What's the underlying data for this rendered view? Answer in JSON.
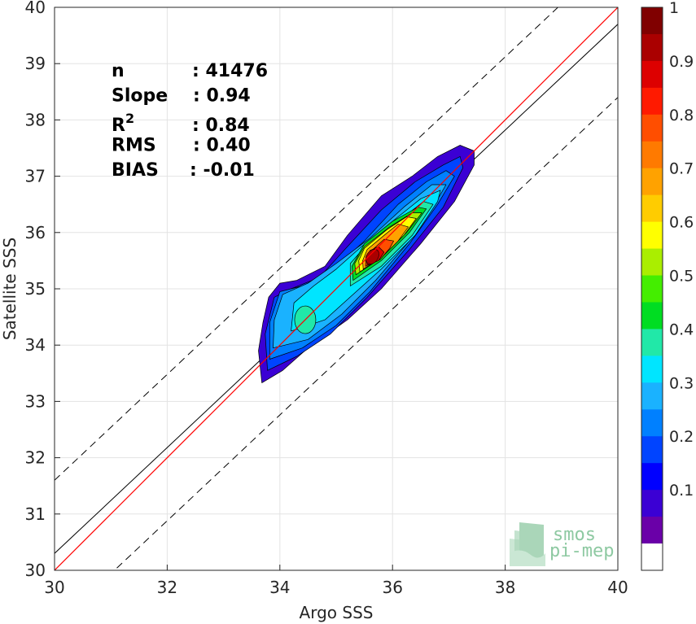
{
  "chart_data": {
    "type": "heatmap",
    "subtype": "density-contour-scatter",
    "xlabel": "Argo SSS",
    "ylabel": "Satellite SSS",
    "xlim": [
      30,
      40
    ],
    "ylim": [
      30,
      40
    ],
    "x_ticks": [
      "30",
      "32",
      "34",
      "36",
      "38",
      "40"
    ],
    "y_ticks": [
      "30",
      "31",
      "32",
      "33",
      "34",
      "35",
      "36",
      "37",
      "38",
      "39",
      "40"
    ],
    "grid": true,
    "stats": [
      {
        "label": "n",
        "value": ": 41476"
      },
      {
        "label": "Slope",
        "value": ": 0.94"
      },
      {
        "label": "R",
        "sup": "2",
        "value": ": 0.84"
      },
      {
        "label": "RMS",
        "value": ": 0.40"
      },
      {
        "label": "BIAS",
        "value": ": -0.01"
      }
    ],
    "lines": {
      "identity": {
        "color": "#ff0000",
        "slope": 1,
        "intercept": 0
      },
      "fit": {
        "color": "#000000",
        "slope": 0.94,
        "intercept": 2.1
      },
      "envelope_offset": 1.3
    },
    "density_peak": {
      "x": 35.7,
      "y": 35.6
    },
    "secondary_peak": {
      "x": 34.45,
      "y": 34.45
    },
    "colorbar": {
      "range": [
        0,
        1
      ],
      "ticks": [
        "0.1",
        "0.2",
        "0.3",
        "0.4",
        "0.5",
        "0.6",
        "0.7",
        "0.8",
        "0.9",
        "1"
      ],
      "colors": [
        "#ffffff",
        "#6a00a8",
        "#3b00d4",
        "#0000ff",
        "#0044ff",
        "#0080ff",
        "#1ab2ff",
        "#00e5ff",
        "#21e8a8",
        "#00dd22",
        "#44ee00",
        "#aaee00",
        "#ffff00",
        "#ffcc00",
        "#ffa200",
        "#ff7a00",
        "#ff4e00",
        "#ff1a00",
        "#dd0000",
        "#aa0000",
        "#800000"
      ]
    }
  },
  "logo": {
    "line1": "smos",
    "line2": "pi-mep"
  }
}
